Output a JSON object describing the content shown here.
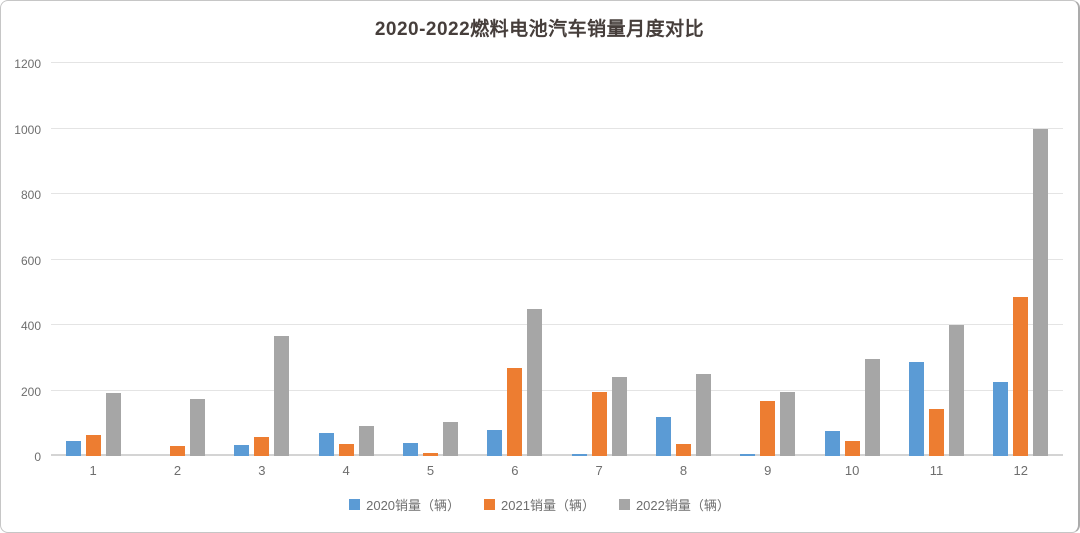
{
  "window": {
    "background": "#ffffff",
    "border_color": "#c6c6c6"
  },
  "chart_data": {
    "type": "bar",
    "title": "2020-2022燃料电池汽车销量月度对比",
    "title_color": "#463e3b",
    "categories": [
      "1",
      "2",
      "3",
      "4",
      "5",
      "6",
      "7",
      "8",
      "9",
      "10",
      "11",
      "12"
    ],
    "series": [
      {
        "name": "2020销量（辆）",
        "color": "#5B9BD5",
        "values": [
          45,
          0,
          35,
          70,
          40,
          80,
          5,
          120,
          5,
          77,
          287,
          227
        ]
      },
      {
        "name": "2021销量（辆）",
        "color": "#ED7D31",
        "values": [
          64,
          30,
          58,
          38,
          10,
          268,
          195,
          38,
          168,
          45,
          145,
          485
        ]
      },
      {
        "name": "2022销量（辆）",
        "color": "#A6A6A6",
        "values": [
          192,
          175,
          365,
          93,
          103,
          450,
          242,
          250,
          196,
          295,
          400,
          1000
        ]
      }
    ],
    "xlabel": "",
    "ylabel": "",
    "ylim": [
      0,
      1200
    ],
    "yticks": [
      0,
      200,
      400,
      600,
      800,
      1000,
      1200
    ],
    "grid": true,
    "gridline_color": "#e4e4e4",
    "axis_text_color": "#6e6e6e",
    "legend_position": "bottom"
  }
}
